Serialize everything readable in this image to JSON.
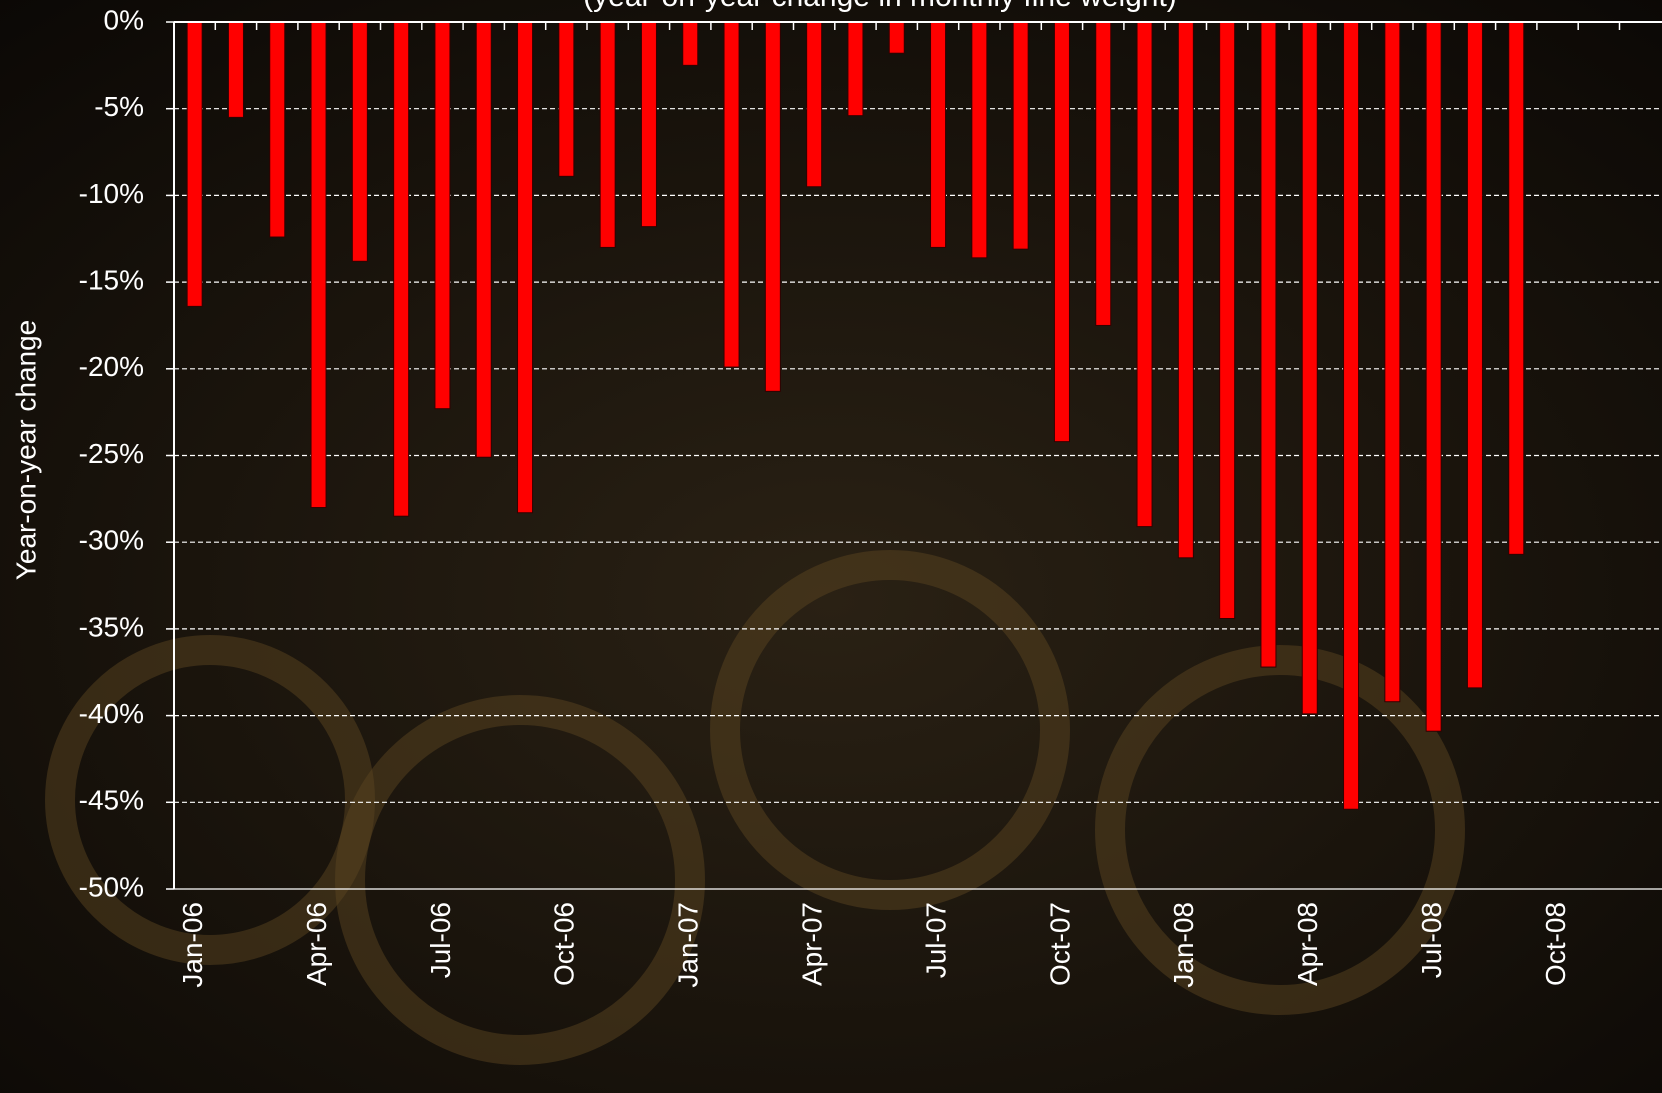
{
  "chart_data": {
    "type": "bar",
    "subtitle": "(year-on-year change in monthly fine weight)",
    "y_label": "Year-on-year change",
    "categories": [
      "Jan-06",
      null,
      null,
      "Apr-06",
      null,
      null,
      "Jul-06",
      null,
      null,
      "Oct-06",
      null,
      null,
      "Jan-07",
      null,
      null,
      "Apr-07",
      null,
      null,
      "Jul-07",
      null,
      null,
      "Oct-07",
      null,
      null,
      "Jan-08",
      null,
      null,
      "Apr-08",
      null,
      null,
      "Jul-08",
      null,
      null,
      "Oct-08",
      null,
      null
    ],
    "values": [
      -16.4,
      -5.5,
      -12.4,
      -28.0,
      -13.8,
      -28.5,
      -22.3,
      -25.1,
      -28.3,
      -8.9,
      -13.0,
      -11.8,
      -2.5,
      -19.9,
      -21.3,
      -9.5,
      -5.4,
      -1.8,
      -13.0,
      -13.6,
      -13.1,
      -24.2,
      -17.5,
      -29.1,
      -30.9,
      -34.4,
      -37.2,
      -39.9,
      -45.4,
      -39.2,
      -40.9,
      -38.4,
      -30.7,
      null,
      null,
      null
    ],
    "color": "#ff0000",
    "ylim": [
      -50,
      0
    ],
    "yticks": [
      {
        "value": 0,
        "label": "0%"
      },
      {
        "value": -5,
        "label": "-5%"
      },
      {
        "value": -10,
        "label": "-10%"
      },
      {
        "value": -15,
        "label": "-15%"
      },
      {
        "value": -20,
        "label": "-20%"
      },
      {
        "value": -25,
        "label": "-25%"
      },
      {
        "value": -30,
        "label": "-30%"
      },
      {
        "value": -35,
        "label": "-35%"
      },
      {
        "value": -40,
        "label": "-40%"
      },
      {
        "value": -45,
        "label": "-45%"
      },
      {
        "value": -50,
        "label": "-50%"
      }
    ],
    "grid": true
  }
}
